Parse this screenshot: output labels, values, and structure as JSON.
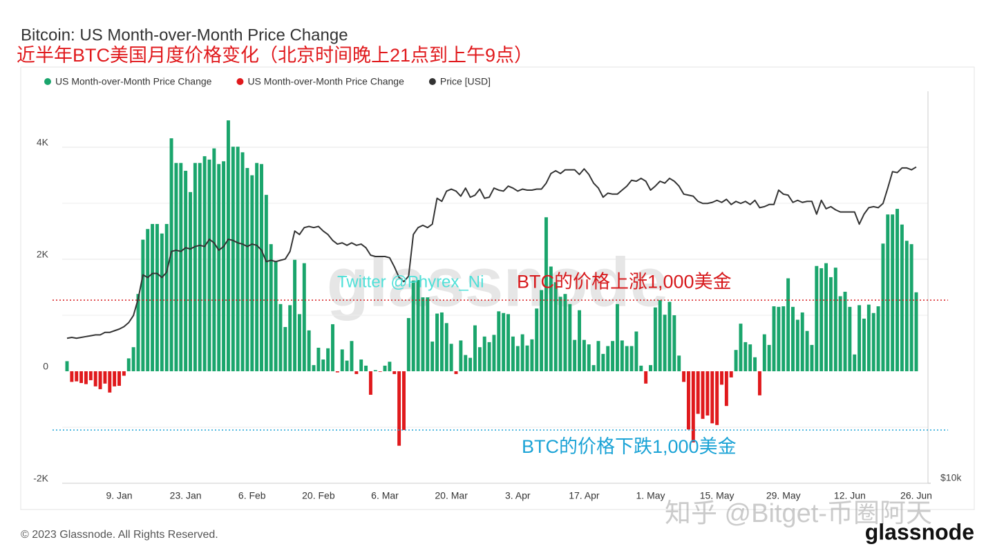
{
  "chart_data": {
    "type": "bar",
    "title": "Bitcoin: US Month-over-Month Price Change",
    "subtitle": "近半年BTC美国月度价格变化（北京时间晚上21点到上午9点）",
    "categories": [
      null,
      null,
      null,
      null,
      null,
      null,
      null,
      null,
      null,
      null,
      null,
      "9. Jan",
      null,
      null,
      null,
      null,
      null,
      null,
      null,
      null,
      null,
      null,
      null,
      null,
      null,
      "23. Jan",
      null,
      null,
      null,
      null,
      null,
      null,
      null,
      null,
      null,
      null,
      null,
      null,
      null,
      "6. Feb",
      null,
      null,
      null,
      null,
      null,
      null,
      null,
      null,
      null,
      null,
      null,
      null,
      null,
      "20. Feb",
      null,
      null,
      null,
      null,
      null,
      null,
      null,
      null,
      null,
      null,
      null,
      null,
      null,
      "6. Mar",
      null,
      null,
      null,
      null,
      null,
      null,
      null,
      null,
      null,
      null,
      null,
      null,
      null,
      "20. Mar",
      null,
      null,
      null,
      null,
      null,
      null,
      null,
      null,
      null,
      null,
      null,
      null,
      null,
      "3. Apr",
      null,
      null,
      null,
      null,
      null,
      null,
      null,
      null,
      null,
      null,
      null,
      null,
      null,
      "17. Apr",
      null,
      null,
      null,
      null,
      null,
      null,
      null,
      null,
      null,
      null,
      null,
      null,
      null,
      "1. May",
      null,
      null,
      null,
      null,
      null,
      null,
      null,
      null,
      null,
      null,
      null,
      null,
      null,
      "15. May",
      null,
      null,
      null,
      null,
      null,
      null,
      null,
      null,
      null,
      null,
      null,
      null,
      null,
      "29. May",
      null,
      null,
      null,
      null,
      null,
      null,
      null,
      null,
      null,
      null,
      null,
      null,
      null,
      "12. Jun",
      null,
      null,
      null,
      null,
      null,
      null,
      null,
      null,
      null,
      null,
      null,
      null,
      null,
      "26. Jun"
    ],
    "series": [
      {
        "name": "US Month-over-Month Price Change",
        "color": "#1aa56c",
        "values": [
          180,
          null,
          null,
          null,
          null,
          null,
          null,
          null,
          null,
          null,
          null,
          null,
          null,
          230,
          430,
          1380,
          2350,
          2540,
          2630,
          2630,
          2460,
          2630,
          4160,
          3720,
          3720,
          3580,
          3200,
          3720,
          3720,
          3840,
          3780,
          3980,
          3700,
          3750,
          4480,
          4010,
          4010,
          3910,
          3630,
          3500,
          3720,
          3700,
          3150,
          2270,
          1950,
          1200,
          790,
          1180,
          1990,
          1020,
          1930,
          730,
          110,
          420,
          210,
          410,
          840,
          null,
          390,
          190,
          540,
          null,
          210,
          100,
          null,
          20,
          null,
          100,
          170,
          null,
          null,
          null,
          950,
          1620,
          1630,
          1320,
          1320,
          530,
          1030,
          1050,
          860,
          490,
          null,
          550,
          290,
          240,
          820,
          430,
          620,
          520,
          650,
          1070,
          1040,
          1020,
          620,
          450,
          660,
          460,
          570,
          1120,
          1450,
          2750,
          1870,
          1590,
          1330,
          1380,
          1200,
          560,
          1090,
          560,
          480,
          110,
          540,
          310,
          450,
          540,
          1200,
          550,
          450,
          450,
          710,
          100,
          null,
          110,
          1140,
          1270,
          1010,
          1240,
          1000,
          280,
          null,
          null,
          null,
          null,
          null,
          null,
          null,
          null,
          null,
          null,
          null,
          380,
          850,
          520,
          480,
          250,
          null,
          660,
          470,
          1160,
          1150,
          1160,
          1660,
          1150,
          920,
          1050,
          720,
          470,
          1880,
          1840,
          1930,
          1680,
          1850,
          1340,
          1420,
          1150,
          300,
          1180,
          940,
          1190,
          1040,
          1160,
          2280,
          2800,
          2800,
          2900,
          2620,
          2330,
          2270,
          1410
        ]
      },
      {
        "name": "US Month-over-Month Price Change",
        "color": "#e0191c",
        "values": [
          null,
          -190,
          -180,
          -210,
          -230,
          -160,
          -270,
          -320,
          -220,
          -380,
          -270,
          -260,
          -80,
          null,
          null,
          null,
          null,
          null,
          null,
          null,
          null,
          null,
          null,
          null,
          null,
          null,
          null,
          null,
          null,
          null,
          null,
          null,
          null,
          null,
          null,
          null,
          null,
          null,
          null,
          null,
          null,
          null,
          null,
          null,
          null,
          null,
          null,
          null,
          null,
          null,
          null,
          null,
          null,
          null,
          null,
          null,
          null,
          -20,
          null,
          null,
          null,
          -50,
          null,
          null,
          -420,
          null,
          -10,
          null,
          null,
          -50,
          -1330,
          -1050,
          null,
          null,
          null,
          null,
          null,
          null,
          null,
          null,
          null,
          null,
          -50,
          null,
          null,
          null,
          null,
          null,
          null,
          null,
          null,
          null,
          null,
          null,
          null,
          null,
          null,
          null,
          null,
          null,
          null,
          null,
          null,
          null,
          null,
          null,
          null,
          null,
          null,
          null,
          null,
          null,
          null,
          null,
          null,
          null,
          null,
          null,
          null,
          null,
          null,
          null,
          -220,
          null,
          null,
          null,
          null,
          null,
          null,
          null,
          -190,
          -1040,
          -1270,
          -760,
          -850,
          -790,
          -930,
          -960,
          -240,
          -620,
          -110,
          null,
          null,
          null,
          null,
          null,
          -430,
          null,
          null,
          null,
          null,
          null,
          null,
          null,
          null,
          null,
          null,
          null,
          null,
          null,
          null,
          null,
          null,
          null,
          null,
          null,
          null,
          null,
          null,
          null,
          null,
          null,
          null,
          null,
          null,
          null,
          null,
          null,
          null,
          null
        ]
      },
      {
        "name": "Price [USD]",
        "color": "#333333",
        "type": "line",
        "axis": "y2",
        "values": [
          16700,
          16750,
          16700,
          16750,
          16800,
          16850,
          16900,
          16900,
          17050,
          17050,
          17150,
          17250,
          17400,
          17650,
          18100,
          19200,
          20900,
          20700,
          21000,
          21000,
          20700,
          21100,
          22700,
          22800,
          22700,
          23000,
          22900,
          23100,
          23200,
          23100,
          23700,
          23400,
          22800,
          23100,
          23700,
          23600,
          23400,
          23300,
          23100,
          23300,
          23200,
          22800,
          21900,
          22000,
          21900,
          22000,
          22100,
          22700,
          24400,
          24100,
          24700,
          24800,
          24700,
          24800,
          24400,
          24100,
          23600,
          23300,
          23400,
          23200,
          23400,
          23200,
          23300,
          23000,
          22400,
          22300,
          22300,
          22300,
          22200,
          21500,
          20700,
          20400,
          20800,
          24100,
          24700,
          24900,
          24700,
          25000,
          27400,
          27100,
          28100,
          28300,
          28100,
          27600,
          28400,
          27500,
          27700,
          28300,
          27400,
          27500,
          28400,
          28200,
          28100,
          28600,
          28400,
          28100,
          28300,
          28200,
          28200,
          28300,
          28300,
          28900,
          29900,
          30200,
          29900,
          30300,
          30300,
          30300,
          29800,
          30400,
          29800,
          28900,
          28400,
          27500,
          27900,
          27800,
          27800,
          28200,
          28600,
          29200,
          29100,
          29400,
          29100,
          28200,
          28600,
          29100,
          28900,
          29400,
          29100,
          28600,
          27800,
          27700,
          27600,
          27100,
          26900,
          26900,
          27000,
          27200,
          27000,
          27300,
          26800,
          27100,
          26900,
          27100,
          26800,
          27200,
          26500,
          26600,
          26800,
          26800,
          28200,
          27800,
          27700,
          27000,
          27200,
          27000,
          27100,
          27100,
          25900,
          27200,
          26400,
          26600,
          26300,
          26100,
          26100,
          26100,
          26100,
          25000,
          25900,
          26500,
          26600,
          26500,
          26900,
          28400,
          30100,
          30000,
          30500,
          30500,
          30300,
          30600
        ]
      }
    ],
    "ylim": [
      -2000,
      5000
    ],
    "yticks": [
      {
        "value": -2000,
        "label": "-2K"
      },
      0,
      {
        "value": 2000,
        "label": "2K"
      },
      {
        "value": 4000,
        "label": "4K"
      }
    ],
    "minor_yticks": [
      -1000,
      1000,
      3000
    ],
    "y2lim": [
      10000,
      40000
    ],
    "y2scale": "log",
    "y2ticks": [
      {
        "value": 10000,
        "label": "$10k"
      }
    ],
    "grid": true,
    "legend": "top-left",
    "annotations": [
      {
        "text": "BTC的价格上涨1,000美金",
        "value": 1270,
        "color": "#d7191c"
      },
      {
        "text": "BTC的价格下跌1,000美金",
        "value": -1050,
        "color": "#1ba3d6"
      }
    ]
  },
  "watermarks": {
    "center": "glassnode",
    "author": "Twitter @Phyrex_Ni",
    "zhihu": "知乎 @Bitget-币圈阿天"
  },
  "footer": {
    "copyright": "© 2023 Glassnode. All Rights Reserved.",
    "logo": "glassnode"
  }
}
